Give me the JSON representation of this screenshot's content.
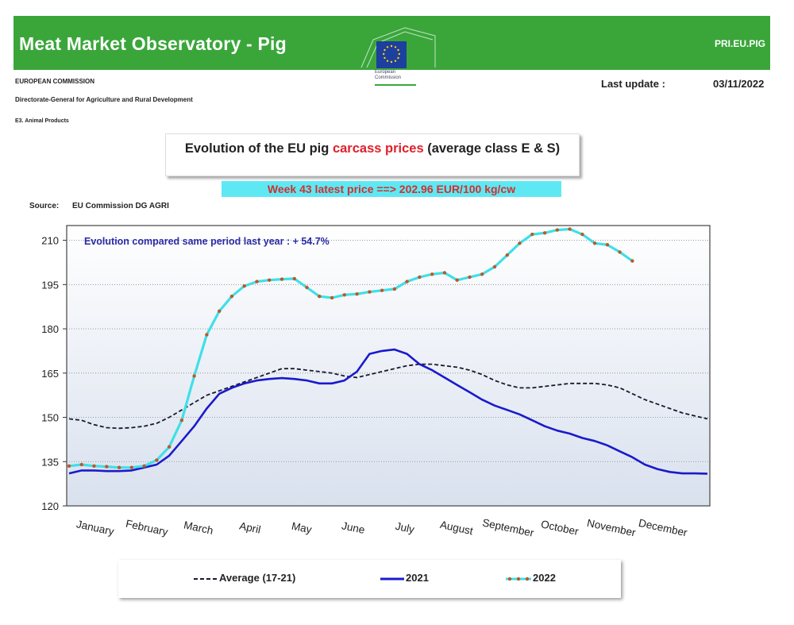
{
  "header": {
    "title": "Meat Market Observatory - Pig",
    "code": "PRI.EU.PIG",
    "org": "EUROPEAN COMMISSION",
    "dg": "Directorate-General for Agriculture and Rural Development",
    "unit": "E3. Animal Products",
    "logo_text": "European Commission",
    "last_update_label": "Last update :",
    "last_update_value": "03/11/2022"
  },
  "chart_title": {
    "part1": "Evolution of the EU pig ",
    "part2": "carcass prices",
    "part3": " (average class E & S)"
  },
  "week_banner": "Week 43 latest price ==>  202.96 EUR/100 kg/cw",
  "source": {
    "label": "Source:",
    "value": "EU Commission DG AGRI"
  },
  "colors": {
    "banner_green": "#3aa63a",
    "average": "#1a1a2e",
    "y2021": "#1a1acc",
    "y2022": "#40dfe8",
    "y2022_markers": "#b85a2a",
    "annotation": "#2a2aa6"
  },
  "chart_data": {
    "type": "line",
    "title": "Evolution of the EU pig carcass prices (average class E & S)",
    "annotation": "Evolution compared same period last year   : + 54.7%",
    "x_labels": [
      "January",
      "February",
      "March",
      "April",
      "May",
      "June",
      "July",
      "August",
      "September",
      "October",
      "November",
      "December"
    ],
    "ylim": [
      120,
      215
    ],
    "yticks": [
      120,
      135,
      150,
      165,
      180,
      195,
      210
    ],
    "weeks": 52,
    "series": [
      {
        "name": "Average (17-21)",
        "style": "dashed",
        "values": [
          149.5,
          149,
          147.5,
          146.5,
          146.3,
          146.5,
          147,
          148,
          150,
          152.5,
          155,
          157.5,
          159,
          160.5,
          162,
          163.5,
          165,
          166.5,
          166.5,
          166,
          165.5,
          165,
          164,
          163.5,
          164.5,
          165.5,
          166.5,
          167.5,
          168,
          168,
          167.5,
          167,
          166,
          164.5,
          162.5,
          161,
          160,
          160,
          160.5,
          161,
          161.5,
          161.5,
          161.5,
          161,
          160,
          158,
          156,
          154.5,
          153,
          151.5,
          150.5,
          149.5
        ]
      },
      {
        "name": "2021",
        "style": "solid",
        "values": [
          131,
          132,
          132,
          131.8,
          131.8,
          132,
          133,
          134,
          137,
          142,
          147,
          153,
          158,
          160,
          161.5,
          162.5,
          163,
          163.3,
          163,
          162.5,
          161.5,
          161.5,
          162.5,
          165.5,
          171.5,
          172.5,
          173,
          171.5,
          168,
          166,
          163.5,
          161,
          158.5,
          156,
          154,
          152.5,
          151,
          149,
          147,
          145.5,
          144.5,
          143,
          142,
          140.5,
          138.5,
          136.5,
          134,
          132.5,
          131.5,
          131,
          131,
          130.9
        ]
      },
      {
        "name": "2022",
        "style": "solid-markers",
        "values": [
          133.5,
          134,
          133.5,
          133.3,
          133,
          133,
          133.5,
          135.5,
          140,
          149,
          164,
          178,
          186,
          191,
          194.5,
          196,
          196.5,
          196.8,
          197,
          194,
          191,
          190.5,
          191.5,
          191.8,
          192.5,
          193,
          193.5,
          196,
          197.5,
          198.5,
          199,
          196.5,
          197.5,
          198.5,
          201,
          205,
          209,
          212,
          212.5,
          213.5,
          213.8,
          212,
          209,
          208.5,
          206,
          203
        ]
      }
    ],
    "series_2021_extension": [
      131,
      131,
      131.5,
      132.5,
      133.5,
      133,
      133,
      133
    ],
    "legend_position": "bottom"
  }
}
